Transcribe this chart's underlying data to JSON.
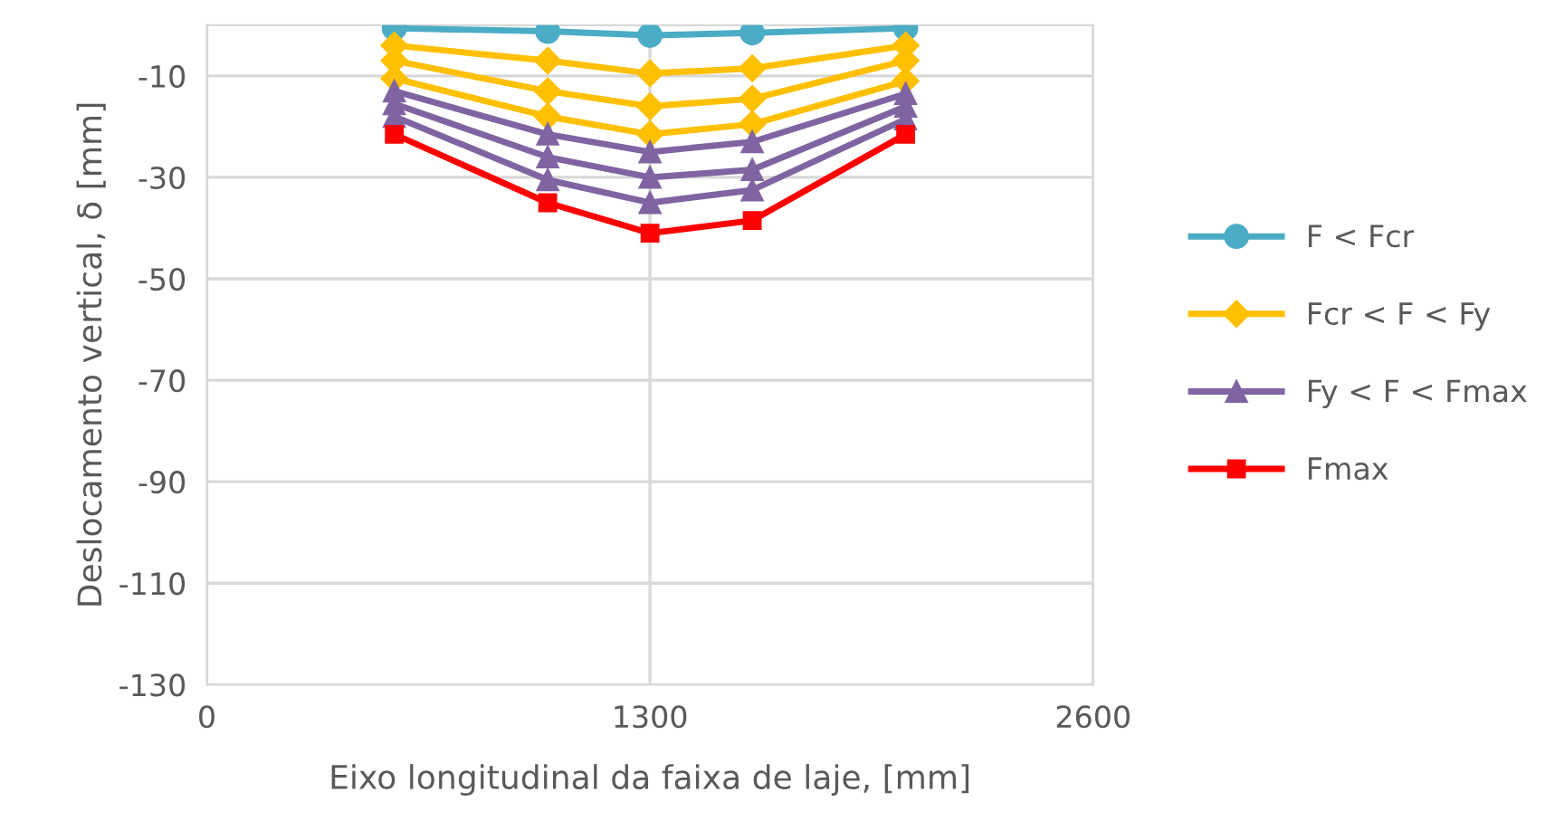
{
  "chart_data": {
    "type": "line",
    "xlabel": "Eixo longitudinal da faixa de laje, [mm]",
    "ylabel": "Deslocamento vertical, δ [mm]",
    "x": [
      550,
      1000,
      1300,
      1600,
      2050
    ],
    "series": [
      {
        "name": "F < Fcr",
        "color": "#4bacc6",
        "marker": "circle",
        "values": [
          -0.6,
          -1.2,
          -2,
          -1.5,
          -0.6
        ]
      },
      {
        "name": "Fcr < F < Fy",
        "color": "#ffc000",
        "marker": "diamond",
        "values": [
          -4,
          -7,
          -9.5,
          -8.5,
          -4
        ]
      },
      {
        "color": "#ffc000",
        "marker": "diamond",
        "values": [
          -7,
          -13,
          -16,
          -14.5,
          -7
        ]
      },
      {
        "color": "#ffc000",
        "marker": "diamond",
        "values": [
          -10.5,
          -18,
          -21.5,
          -19.5,
          -11
        ]
      },
      {
        "name": "Fy < F < Fmax",
        "color": "#8064a2",
        "marker": "triangle",
        "values": [
          -13,
          -21.5,
          -25,
          -23,
          -13.5
        ]
      },
      {
        "color": "#8064a2",
        "marker": "triangle",
        "values": [
          -15.5,
          -26,
          -30,
          -28.5,
          -16
        ]
      },
      {
        "color": "#8064a2",
        "marker": "triangle",
        "values": [
          -18,
          -30.5,
          -35,
          -32.5,
          -18.5
        ]
      },
      {
        "name": "Fmax",
        "color": "#ff0000",
        "marker": "square",
        "values": [
          -21.5,
          -35,
          -41,
          -38.5,
          -21.5
        ]
      }
    ],
    "xlim": [
      0,
      2600
    ],
    "xticks": [
      0,
      1300,
      2600
    ],
    "ylim": [
      -130,
      0
    ],
    "yticks": [
      -130,
      -110,
      -90,
      -70,
      -50,
      -30,
      -10
    ],
    "grid": true,
    "legend": "right"
  }
}
